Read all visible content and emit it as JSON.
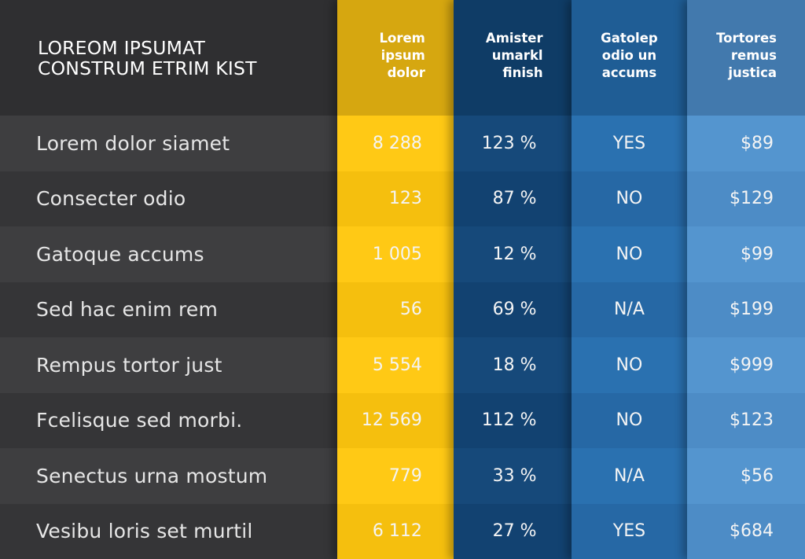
{
  "table": {
    "title_lines": [
      "LOREOM IPSUMAT",
      "CONSTRUM ETRIM KIST"
    ],
    "columns": [
      {
        "header_lines": [
          "Lorem",
          "ipsum",
          "dolor"
        ],
        "color": "#ffc915"
      },
      {
        "header_lines": [
          "Amister",
          "umarkl",
          "finish"
        ],
        "color": "#16497a"
      },
      {
        "header_lines": [
          "Gatolep",
          "odio un",
          "accums"
        ],
        "color": "#2a71b0"
      },
      {
        "header_lines": [
          "Tortores",
          "remus",
          "justica"
        ],
        "color": "#5495cf"
      }
    ],
    "rows": [
      {
        "label": "Lorem dolor siamet",
        "values": [
          "8 288",
          "123 %",
          "YES",
          "$89"
        ]
      },
      {
        "label": "Consecter odio",
        "values": [
          "123",
          "87 %",
          "NO",
          "$129"
        ]
      },
      {
        "label": "Gatoque accums",
        "values": [
          "1 005",
          "12 %",
          "NO",
          "$99"
        ]
      },
      {
        "label": "Sed hac enim rem",
        "values": [
          "56",
          "69 %",
          "N/A",
          "$199"
        ]
      },
      {
        "label": "Rempus tortor just",
        "values": [
          "5 554",
          "18 %",
          "NO",
          "$999"
        ]
      },
      {
        "label": "Fcelisque sed morbi.",
        "values": [
          "12 569",
          "112 %",
          "NO",
          "$123"
        ]
      },
      {
        "label": "Senectus urna mostum",
        "values": [
          "779",
          "33 %",
          "N/A",
          "$56"
        ]
      },
      {
        "label": "Vesibu loris set murtil",
        "values": [
          "6 112",
          "27 %",
          "YES",
          "$684"
        ]
      }
    ]
  }
}
